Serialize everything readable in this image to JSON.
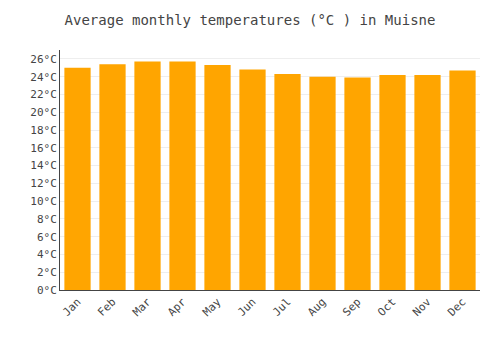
{
  "chart_data": {
    "type": "bar",
    "title": "Average monthly temperatures (°C ) in Muisne",
    "categories": [
      "Jan",
      "Feb",
      "Mar",
      "Apr",
      "May",
      "Jun",
      "Jul",
      "Aug",
      "Sep",
      "Oct",
      "Nov",
      "Dec"
    ],
    "values": [
      25.0,
      25.4,
      25.7,
      25.7,
      25.3,
      24.8,
      24.3,
      24.0,
      23.9,
      24.2,
      24.2,
      24.7
    ],
    "color": "#FFA500",
    "ylim": [
      0,
      27
    ],
    "yticks": [
      {
        "value": 0,
        "label": "0°C"
      },
      {
        "value": 2,
        "label": "2°C"
      },
      {
        "value": 4,
        "label": "4°C"
      },
      {
        "value": 6,
        "label": "6°C"
      },
      {
        "value": 8,
        "label": "8°C"
      },
      {
        "value": 10,
        "label": "10°C"
      },
      {
        "value": 12,
        "label": "12°C"
      },
      {
        "value": 14,
        "label": "14°C"
      },
      {
        "value": 16,
        "label": "16°C"
      },
      {
        "value": 18,
        "label": "18°C"
      },
      {
        "value": 20,
        "label": "20°C"
      },
      {
        "value": 22,
        "label": "22°C"
      },
      {
        "value": 24,
        "label": "24°C"
      },
      {
        "value": 26,
        "label": "26°C"
      }
    ],
    "grid": true
  }
}
